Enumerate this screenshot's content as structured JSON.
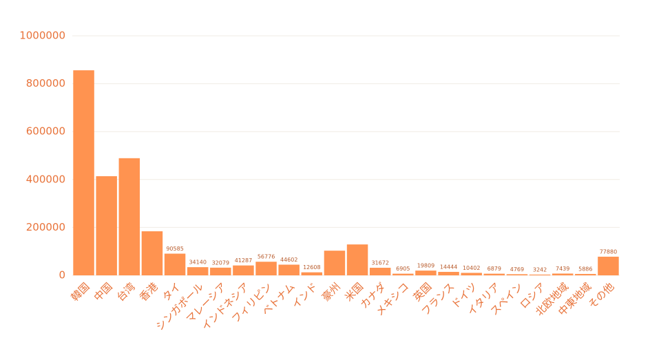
{
  "chart_data": {
    "type": "bar",
    "categories": [
      "韓国",
      "中国",
      "台湾",
      "香港",
      "タイ",
      "シンガポール",
      "マレーシア",
      "インドネシア",
      "フィリピン",
      "ベトナム",
      "インド",
      "豪州",
      "米国",
      "カナダ",
      "メキシコ",
      "英国",
      "フランス",
      "ドイツ",
      "イタリア",
      "スペイン",
      "ロシア",
      "北欧地域",
      "中東地域",
      "その他"
    ],
    "values": [
      856000,
      414000,
      489000,
      184000,
      90585,
      34140,
      32079,
      41287,
      56776,
      44602,
      12608,
      103000,
      129000,
      31672,
      6905,
      19809,
      14444,
      10402,
      6879,
      4769,
      3242,
      7439,
      5886,
      77880
    ],
    "value_labels": [
      null,
      null,
      null,
      null,
      "90585",
      "34140",
      "32079",
      "41287",
      "56776",
      "44602",
      "12608",
      null,
      null,
      "31672",
      "6905",
      "19809",
      "14444",
      "10402",
      "6879",
      "4769",
      "3242",
      "7439",
      "5886",
      "77880"
    ],
    "color": "#ff9350",
    "ylim": [
      0,
      1000000
    ],
    "yticks": [
      0,
      200000,
      400000,
      600000,
      800000,
      1000000
    ],
    "grid": true
  }
}
